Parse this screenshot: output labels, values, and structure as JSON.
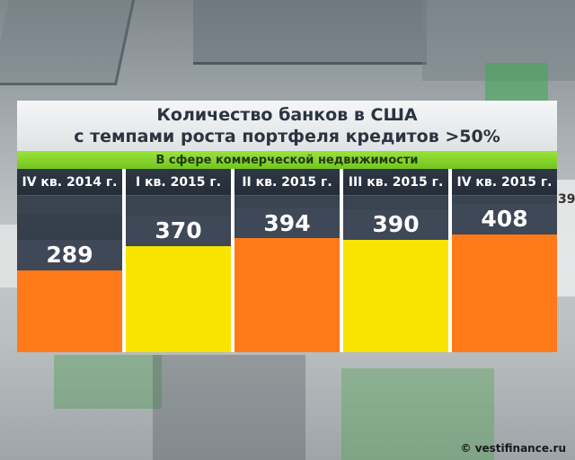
{
  "chart_data": {
    "type": "bar",
    "title_lines": [
      "Количество банков в США",
      "с темпами роста портфеля кредитов >50%"
    ],
    "subtitle": "В сфере коммерческой недвижимости",
    "categories": [
      "IV кв. 2014 г.",
      "I кв. 2015 г.",
      "II кв. 2015 г.",
      "III кв. 2015 г.",
      "IV кв. 2015 г."
    ],
    "values": [
      289,
      370,
      394,
      390,
      408
    ],
    "bar_colors": [
      "#ff7a18",
      "#f8e400",
      "#ff7a18",
      "#f8e400",
      "#ff7a18"
    ]
  },
  "background": {
    "side_number": "39"
  },
  "watermark": "© vestifinance.ru"
}
